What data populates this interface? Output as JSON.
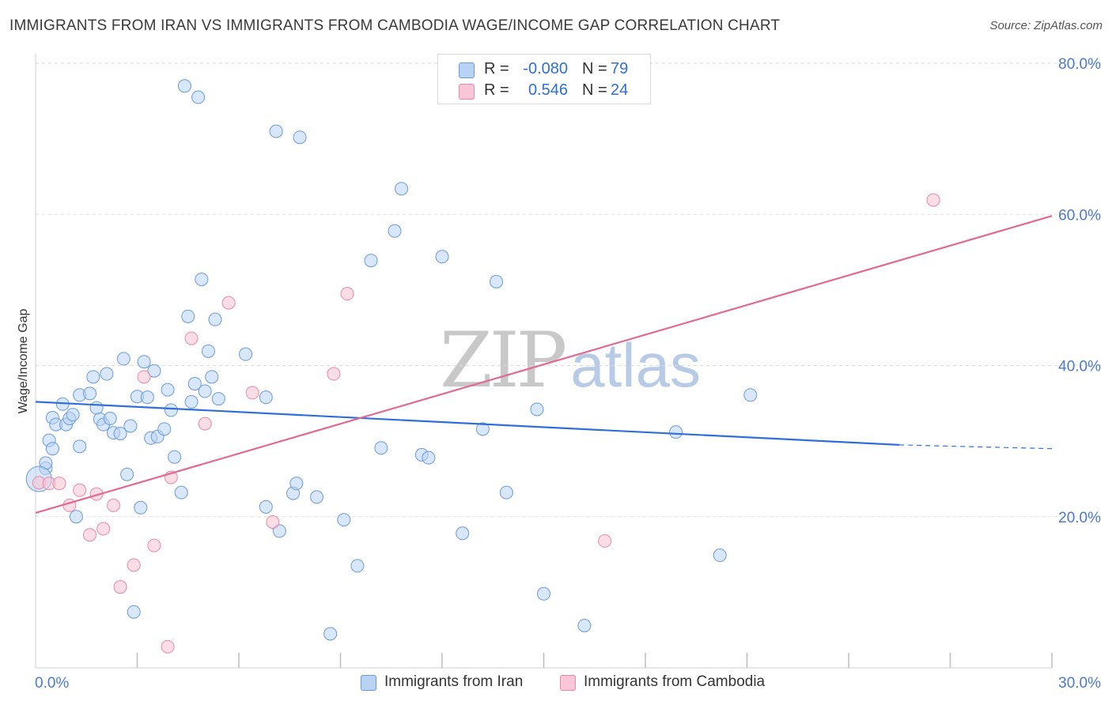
{
  "header": {
    "title": "IMMIGRANTS FROM IRAN VS IMMIGRANTS FROM CAMBODIA WAGE/INCOME GAP CORRELATION CHART",
    "source": "Source: ZipAtlas.com"
  },
  "watermark": {
    "zip": "ZIP",
    "atlas": "atlas"
  },
  "legend": {
    "rows": [
      {
        "r_label": "R =",
        "r_value": "-0.080",
        "n_label": "N =",
        "n_value": "79"
      },
      {
        "r_label": "R =",
        "r_value": "0.546",
        "n_label": "N =",
        "n_value": "24"
      }
    ],
    "bottom": [
      {
        "label": "Immigrants from Iran"
      },
      {
        "label": "Immigrants from Cambodia"
      }
    ]
  },
  "colors": {
    "iran_fill": "#b9d3f5",
    "iran_stroke": "#6a9ad8",
    "iran_line": "#2f6fd6",
    "cambodia_fill": "#f8c6d6",
    "cambodia_stroke": "#e68aa8",
    "cambodia_line": "#e06a93",
    "grid": "#dddddd",
    "tick_label": "#4a7ac8"
  },
  "chart_data": {
    "type": "scatter",
    "title": "IMMIGRANTS FROM IRAN VS IMMIGRANTS FROM CAMBODIA WAGE/INCOME GAP CORRELATION CHART",
    "xlabel": "",
    "ylabel": "Wage/Income Gap",
    "xlim": [
      0,
      30
    ],
    "ylim": [
      0,
      80
    ],
    "x_tick_labels": [
      "0.0%",
      "30.0%"
    ],
    "y_tick_values": [
      20,
      40,
      60,
      80
    ],
    "y_tick_labels": [
      "20.0%",
      "40.0%",
      "60.0%",
      "80.0%"
    ],
    "grid": true,
    "legend_position": "top-center",
    "series": [
      {
        "name": "Immigrants from Iran",
        "r": -0.08,
        "n": 79,
        "trend": {
          "x": [
            0,
            25.5
          ],
          "y": [
            35.2,
            29.5
          ],
          "dashed_to": [
            30,
            29.0
          ]
        },
        "points": [
          [
            0.3,
            26.4
          ],
          [
            0.3,
            27.1
          ],
          [
            0.4,
            30.1
          ],
          [
            0.5,
            29.0
          ],
          [
            0.5,
            33.1
          ],
          [
            0.6,
            32.2
          ],
          [
            0.8,
            34.9
          ],
          [
            0.9,
            32.2
          ],
          [
            1.0,
            33.0
          ],
          [
            1.1,
            33.5
          ],
          [
            1.2,
            20.0
          ],
          [
            1.3,
            29.3
          ],
          [
            1.3,
            36.1
          ],
          [
            1.6,
            36.3
          ],
          [
            1.7,
            38.5
          ],
          [
            1.8,
            34.4
          ],
          [
            1.9,
            32.9
          ],
          [
            2.0,
            32.2
          ],
          [
            2.1,
            38.9
          ],
          [
            2.2,
            33.0
          ],
          [
            2.3,
            31.1
          ],
          [
            2.5,
            31.0
          ],
          [
            2.6,
            40.9
          ],
          [
            2.7,
            25.6
          ],
          [
            2.8,
            32.0
          ],
          [
            2.9,
            7.4
          ],
          [
            3.0,
            35.9
          ],
          [
            3.1,
            21.2
          ],
          [
            3.2,
            40.5
          ],
          [
            3.3,
            35.8
          ],
          [
            3.4,
            30.4
          ],
          [
            3.5,
            39.3
          ],
          [
            3.6,
            30.6
          ],
          [
            3.8,
            31.6
          ],
          [
            3.9,
            36.8
          ],
          [
            4.0,
            34.1
          ],
          [
            4.1,
            27.9
          ],
          [
            4.3,
            23.2
          ],
          [
            4.4,
            77.0
          ],
          [
            4.5,
            46.5
          ],
          [
            4.6,
            35.2
          ],
          [
            4.7,
            37.6
          ],
          [
            4.8,
            75.5
          ],
          [
            4.9,
            51.4
          ],
          [
            5.0,
            36.6
          ],
          [
            5.1,
            41.9
          ],
          [
            5.2,
            38.5
          ],
          [
            5.3,
            46.1
          ],
          [
            5.4,
            35.6
          ],
          [
            6.2,
            41.5
          ],
          [
            6.8,
            35.8
          ],
          [
            6.8,
            21.3
          ],
          [
            7.1,
            71.0
          ],
          [
            7.2,
            18.1
          ],
          [
            7.6,
            23.1
          ],
          [
            7.7,
            24.4
          ],
          [
            7.8,
            70.2
          ],
          [
            8.3,
            22.6
          ],
          [
            8.7,
            4.5
          ],
          [
            9.1,
            19.6
          ],
          [
            9.5,
            13.5
          ],
          [
            9.9,
            53.9
          ],
          [
            10.2,
            29.1
          ],
          [
            10.6,
            57.8
          ],
          [
            10.8,
            63.4
          ],
          [
            11.4,
            28.2
          ],
          [
            11.6,
            27.8
          ],
          [
            12.0,
            54.4
          ],
          [
            12.6,
            17.8
          ],
          [
            13.2,
            31.6
          ],
          [
            13.6,
            51.1
          ],
          [
            13.9,
            23.2
          ],
          [
            14.8,
            34.2
          ],
          [
            15.0,
            9.8
          ],
          [
            16.2,
            5.6
          ],
          [
            18.9,
            31.2
          ],
          [
            20.2,
            14.9
          ],
          [
            21.1,
            36.1
          ],
          [
            0.1,
            25.0
          ]
        ]
      },
      {
        "name": "Immigrants from Cambodia",
        "r": 0.546,
        "n": 24,
        "trend": {
          "x": [
            0,
            30
          ],
          "y": [
            20.5,
            59.8
          ]
        },
        "points": [
          [
            0.1,
            24.5
          ],
          [
            0.4,
            24.4
          ],
          [
            0.7,
            24.4
          ],
          [
            1.0,
            21.5
          ],
          [
            1.3,
            23.5
          ],
          [
            1.6,
            17.6
          ],
          [
            1.8,
            23.0
          ],
          [
            2.0,
            18.4
          ],
          [
            2.3,
            21.5
          ],
          [
            2.5,
            10.7
          ],
          [
            2.9,
            13.6
          ],
          [
            3.2,
            38.5
          ],
          [
            3.5,
            16.2
          ],
          [
            3.9,
            2.8
          ],
          [
            4.0,
            25.2
          ],
          [
            4.6,
            43.6
          ],
          [
            5.0,
            32.3
          ],
          [
            5.7,
            48.3
          ],
          [
            6.4,
            36.4
          ],
          [
            7.0,
            19.3
          ],
          [
            8.8,
            38.9
          ],
          [
            9.2,
            49.5
          ],
          [
            16.8,
            16.8
          ],
          [
            26.5,
            61.9
          ]
        ]
      }
    ]
  }
}
